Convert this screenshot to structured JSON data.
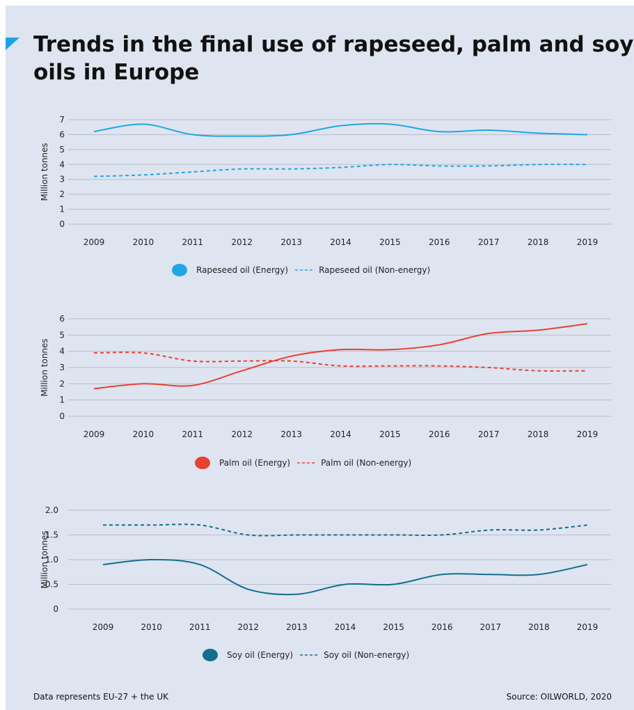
{
  "title": "Trends in the final use of rapeseed, palm and soy\noils in Europe",
  "footnote_left": "Data represents EU-27 + the UK",
  "footnote_right": "Source: OILWORLD, 2020",
  "chart_data": [
    {
      "type": "line",
      "ylabel": "Million tonnes",
      "x": [
        "2009",
        "2010",
        "2011",
        "2012",
        "2013",
        "2014",
        "2015",
        "2016",
        "2017",
        "2018",
        "2019"
      ],
      "yticks": [
        "0",
        "1",
        "2",
        "3",
        "4",
        "5",
        "6",
        "7"
      ],
      "ylim": [
        0,
        7
      ],
      "grid": true,
      "legend_position": "bottom",
      "series": [
        {
          "name": "Rapeseed oil (Energy)",
          "values": [
            6.2,
            6.7,
            6.0,
            5.9,
            6.0,
            6.6,
            6.7,
            6.2,
            6.3,
            6.1,
            6.0
          ],
          "color": "#1fa6e3",
          "dashed": false
        },
        {
          "name": "Rapeseed oil (Non-energy)",
          "values": [
            3.2,
            3.3,
            3.5,
            3.7,
            3.7,
            3.8,
            4.0,
            3.9,
            3.9,
            4.0,
            4.0
          ],
          "color": "#1fa6e3",
          "dashed": true
        }
      ]
    },
    {
      "type": "line",
      "ylabel": "Million tonnes",
      "x": [
        "2009",
        "2010",
        "2011",
        "2012",
        "2013",
        "2014",
        "2015",
        "2016",
        "2017",
        "2018",
        "2019"
      ],
      "yticks": [
        "0",
        "1",
        "2",
        "3",
        "4",
        "5",
        "6"
      ],
      "ylim": [
        0,
        6
      ],
      "grid": true,
      "legend_position": "bottom",
      "series": [
        {
          "name": "Palm oil (Energy)",
          "values": [
            1.7,
            2.0,
            1.9,
            2.8,
            3.7,
            4.1,
            4.1,
            4.4,
            5.1,
            5.3,
            5.7
          ],
          "color": "#e8412f",
          "dashed": false
        },
        {
          "name": "Palm oil (Non-energy)",
          "values": [
            3.9,
            3.9,
            3.4,
            3.4,
            3.4,
            3.1,
            3.1,
            3.1,
            3.0,
            2.8,
            2.8
          ],
          "color": "#e8412f",
          "dashed": true
        }
      ]
    },
    {
      "type": "line",
      "ylabel": "Million tonnes",
      "x": [
        "2009",
        "2010",
        "2011",
        "2012",
        "2013",
        "2014",
        "2015",
        "2016",
        "2017",
        "2018",
        "2019"
      ],
      "yticks": [
        "0",
        "0.5",
        "1.0",
        "1.5",
        "2.0"
      ],
      "ylim": [
        0,
        2
      ],
      "grid": true,
      "legend_position": "bottom",
      "series": [
        {
          "name": "Soy oil (Energy)",
          "values": [
            0.9,
            1.0,
            0.9,
            0.4,
            0.3,
            0.5,
            0.5,
            0.7,
            0.7,
            0.7,
            0.9
          ],
          "color": "#126f8c",
          "dashed": false
        },
        {
          "name": "Soy oil (Non-energy)",
          "values": [
            1.7,
            1.7,
            1.7,
            1.5,
            1.5,
            1.5,
            1.5,
            1.5,
            1.6,
            1.6,
            1.7
          ],
          "color": "#126f8c",
          "dashed": true
        }
      ]
    }
  ]
}
